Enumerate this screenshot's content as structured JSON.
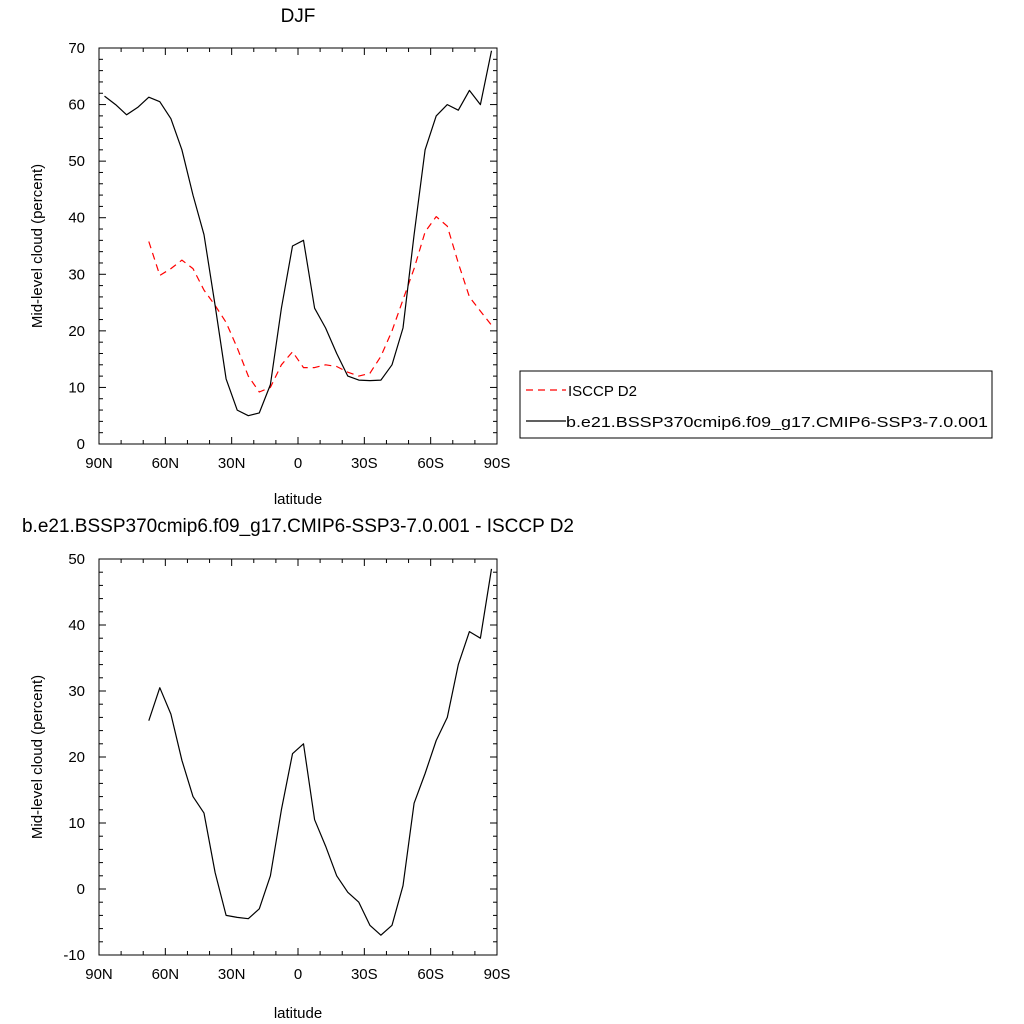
{
  "chart_data": [
    {
      "type": "line",
      "title": "DJF",
      "xlabel": "latitude",
      "ylabel": "Mid-level cloud (percent)",
      "xlim": [
        -90,
        90
      ],
      "ylim": [
        0,
        70
      ],
      "x_ticks": [
        {
          "value": -90,
          "label": "90N"
        },
        {
          "value": -60,
          "label": "60N"
        },
        {
          "value": -30,
          "label": "30N"
        },
        {
          "value": 0,
          "label": "0"
        },
        {
          "value": 30,
          "label": "30S"
        },
        {
          "value": 60,
          "label": "60S"
        },
        {
          "value": 90,
          "label": "90S"
        }
      ],
      "y_ticks": [
        0,
        10,
        20,
        30,
        40,
        50,
        60,
        70
      ],
      "legend_position": "right",
      "series": [
        {
          "name": "ISCCP D2",
          "color": "#ff0000",
          "dash": "dashed",
          "x": [
            -67.5,
            -62.5,
            -57.5,
            -52.5,
            -47.5,
            -42.5,
            -37.5,
            -32.5,
            -27.5,
            -22.5,
            -17.5,
            -12.5,
            -7.5,
            -2.5,
            2.5,
            7.5,
            12.5,
            17.5,
            22.5,
            27.5,
            32.5,
            37.5,
            42.5,
            47.5,
            52.5,
            57.5,
            62.5,
            67.5,
            72.5,
            77.5,
            82.5,
            87.5
          ],
          "y": [
            35.8,
            29.8,
            31.0,
            32.5,
            31.0,
            27.2,
            24.5,
            21.5,
            17.0,
            12.0,
            9.2,
            10.0,
            14.0,
            16.3,
            13.5,
            13.5,
            14.0,
            13.7,
            12.7,
            12.0,
            12.5,
            15.5,
            20.0,
            25.5,
            31.0,
            37.5,
            40.2,
            38.5,
            32.0,
            26.0,
            23.5,
            21.0
          ]
        },
        {
          "name": "b.e21.BSSP370cmip6.f09_g17.CMIP6-SSP3-7.0.001",
          "color": "#000000",
          "dash": "solid",
          "x": [
            -87.5,
            -82.5,
            -77.5,
            -72.5,
            -67.5,
            -62.5,
            -57.5,
            -52.5,
            -47.5,
            -42.5,
            -37.5,
            -32.5,
            -27.5,
            -22.5,
            -17.5,
            -12.5,
            -7.5,
            -2.5,
            2.5,
            7.5,
            12.5,
            17.5,
            22.5,
            27.5,
            32.5,
            37.5,
            42.5,
            47.5,
            52.5,
            57.5,
            62.5,
            67.5,
            72.5,
            77.5,
            82.5,
            87.5
          ],
          "y": [
            61.5,
            60.0,
            58.2,
            59.5,
            61.3,
            60.5,
            57.5,
            52.0,
            44.0,
            37.0,
            24.5,
            11.5,
            6.0,
            5.0,
            5.5,
            10.5,
            24.0,
            35.0,
            36.0,
            24.0,
            20.5,
            16.0,
            12.0,
            11.3,
            11.2,
            11.3,
            14.0,
            20.5,
            37.0,
            52.0,
            58.0,
            60.0,
            59.0,
            62.5,
            60.0,
            69.5
          ]
        }
      ]
    },
    {
      "type": "line",
      "title": "b.e21.BSSP370cmip6.f09_g17.CMIP6-SSP3-7.0.001 - ISCCP D2",
      "xlabel": "latitude",
      "ylabel": "Mid-level cloud (percent)",
      "xlim": [
        -90,
        90
      ],
      "ylim": [
        -10,
        50
      ],
      "x_ticks": [
        {
          "value": -90,
          "label": "90N"
        },
        {
          "value": -60,
          "label": "60N"
        },
        {
          "value": -30,
          "label": "30N"
        },
        {
          "value": 0,
          "label": "0"
        },
        {
          "value": 30,
          "label": "30S"
        },
        {
          "value": 60,
          "label": "60S"
        },
        {
          "value": 90,
          "label": "90S"
        }
      ],
      "y_ticks": [
        -10,
        0,
        10,
        20,
        30,
        40,
        50
      ],
      "series": [
        {
          "color": "#000000",
          "dash": "solid",
          "x": [
            -67.5,
            -62.5,
            -57.5,
            -52.5,
            -47.5,
            -42.5,
            -37.5,
            -32.5,
            -27.5,
            -22.5,
            -17.5,
            -12.5,
            -7.5,
            -2.5,
            2.5,
            7.5,
            12.5,
            17.5,
            22.5,
            27.5,
            32.5,
            37.5,
            42.5,
            47.5,
            52.5,
            57.5,
            62.5,
            67.5,
            72.5,
            77.5,
            82.5,
            87.5
          ],
          "y": [
            25.5,
            30.5,
            26.5,
            19.5,
            14.0,
            11.5,
            2.5,
            -4.0,
            -4.3,
            -4.5,
            -3.0,
            2.0,
            12.0,
            20.5,
            22.0,
            10.5,
            6.5,
            2.0,
            -0.5,
            -2.0,
            -5.5,
            -7.0,
            -5.5,
            0.5,
            13.0,
            17.5,
            22.5,
            26.0,
            34.0,
            39.0,
            38.0,
            48.5
          ]
        }
      ]
    }
  ]
}
